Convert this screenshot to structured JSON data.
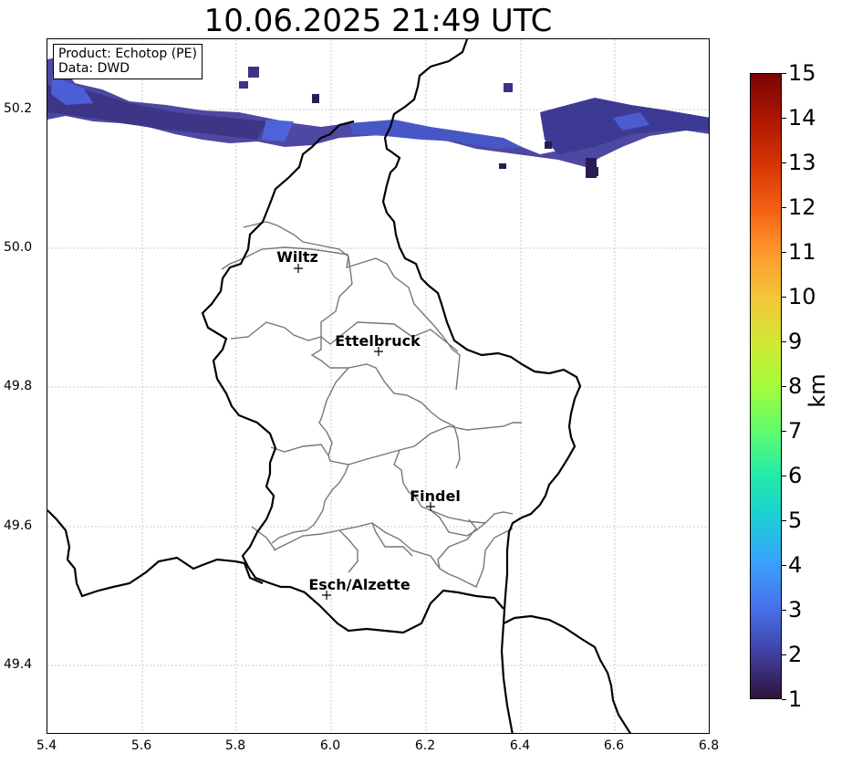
{
  "title": "10.06.2025 21:49 UTC",
  "info": {
    "product": "Product: Echotop (PE)",
    "data": "Data: DWD"
  },
  "axes": {
    "x_ticks": [
      "5.4",
      "5.6",
      "5.8",
      "6.0",
      "6.2",
      "6.4",
      "6.6",
      "6.8"
    ],
    "y_ticks": [
      "50.2",
      "50.0",
      "49.8",
      "49.6",
      "49.4"
    ]
  },
  "cities": [
    {
      "name": "Wiltz",
      "lon": 5.93,
      "lat": 49.97
    },
    {
      "name": "Ettelbruck",
      "lon": 6.1,
      "lat": 49.85
    },
    {
      "name": "Findel",
      "lon": 6.21,
      "lat": 49.63
    },
    {
      "name": "Esch/Alzette",
      "lon": 5.99,
      "lat": 49.5
    }
  ],
  "colorbar": {
    "label": "km",
    "ticks": [
      "1",
      "2",
      "3",
      "4",
      "5",
      "6",
      "7",
      "8",
      "9",
      "10",
      "11",
      "12",
      "13",
      "14",
      "15"
    ],
    "colors": {
      "low": "#30123b",
      "mid": "#4145ab",
      "high": "#7a0403"
    }
  }
}
